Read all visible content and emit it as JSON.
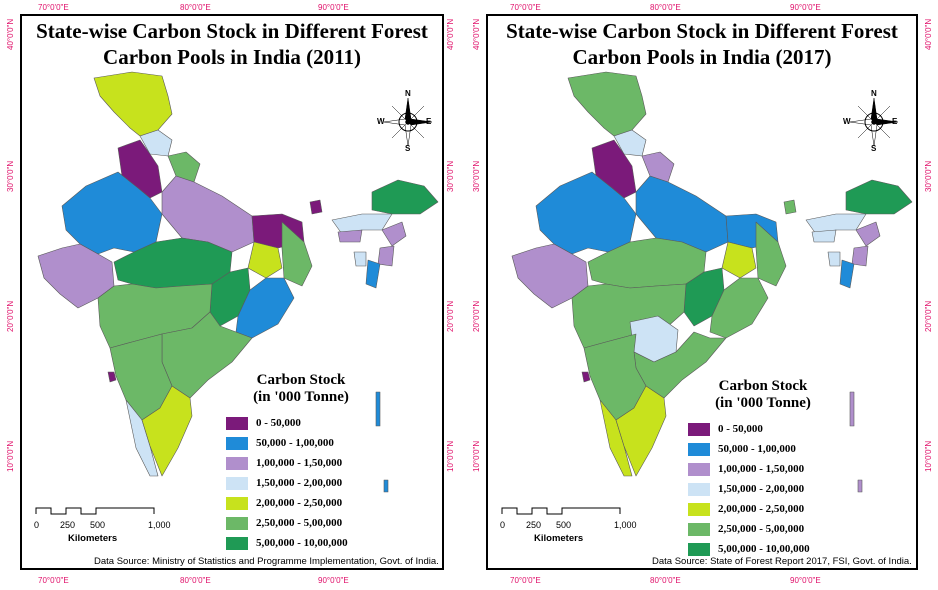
{
  "legend_colors": {
    "c1": "#7b1a7a",
    "c2": "#1f8bd8",
    "c3": "#b08fcc",
    "c4": "#cde3f5",
    "c5": "#c7e21d",
    "c6": "#6cb867",
    "c7": "#1f9a55"
  },
  "maps": [
    {
      "title_line1": "State-wise Carbon Stock in Different Forest",
      "title_line2": "Carbon Pools in India (2011)",
      "legend_title_line1": "Carbon Stock",
      "legend_title_line2": "(in '000 Tonne)",
      "legend": [
        {
          "label": "0 - 50,000",
          "color": "#7b1a7a"
        },
        {
          "label": "50,000 - 1,00,000",
          "color": "#1f8bd8"
        },
        {
          "label": "1,00,000 - 1,50,000",
          "color": "#b08fcc"
        },
        {
          "label": "1,50,000 - 2,00,000",
          "color": "#cde3f5"
        },
        {
          "label": "2,00,000 - 2,50,000",
          "color": "#c7e21d"
        },
        {
          "label": "2,50,000 - 5,00,000",
          "color": "#6cb867"
        },
        {
          "label": "5,00,000 - 10,00,000",
          "color": "#1f9a55"
        }
      ],
      "scale_ticks": [
        "0",
        "250",
        "500",
        "1,000"
      ],
      "scale_unit": "Kilometers",
      "source": "Data Source: Ministry of Statistics and Programme Implementation, Govt. of India.",
      "lon_ticks": [
        "70°0'0\"E",
        "80°0'0\"E",
        "90°0'0\"E"
      ],
      "lat_ticks": [
        "40°0'0\"N",
        "30°0'0\"N",
        "20°0'0\"N",
        "10°0'0\"N"
      ],
      "compass": {
        "n": "N",
        "s": "S",
        "e": "E",
        "w": "W"
      }
    },
    {
      "title_line1": "State-wise Carbon Stock in Different Forest",
      "title_line2": "Carbon Pools in India (2017)",
      "legend_title_line1": "Carbon Stock",
      "legend_title_line2": "(in '000 Tonne)",
      "legend": [
        {
          "label": "0 - 50,000",
          "color": "#7b1a7a"
        },
        {
          "label": "50,000 - 1,00,000",
          "color": "#1f8bd8"
        },
        {
          "label": "1,00,000 - 1,50,000",
          "color": "#b08fcc"
        },
        {
          "label": "1,50,000 - 2,00,000",
          "color": "#cde3f5"
        },
        {
          "label": "2,00,000 - 2,50,000",
          "color": "#c7e21d"
        },
        {
          "label": "2,50,000 - 5,00,000",
          "color": "#6cb867"
        },
        {
          "label": "5,00,000 - 10,00,000",
          "color": "#1f9a55"
        }
      ],
      "scale_ticks": [
        "0",
        "250",
        "500",
        "1,000"
      ],
      "scale_unit": "Kilometers",
      "source": "Data Source:  State of Forest Report 2017, FSI, Govt. of India.",
      "lon_ticks": [
        "70°0'0\"E",
        "80°0'0\"E",
        "90°0'0\"E"
      ],
      "lat_ticks": [
        "40°0'0\"N",
        "30°0'0\"N",
        "20°0'0\"N",
        "10°0'0\"N"
      ],
      "compass": {
        "n": "N",
        "s": "S",
        "e": "E",
        "w": "W"
      }
    }
  ]
}
